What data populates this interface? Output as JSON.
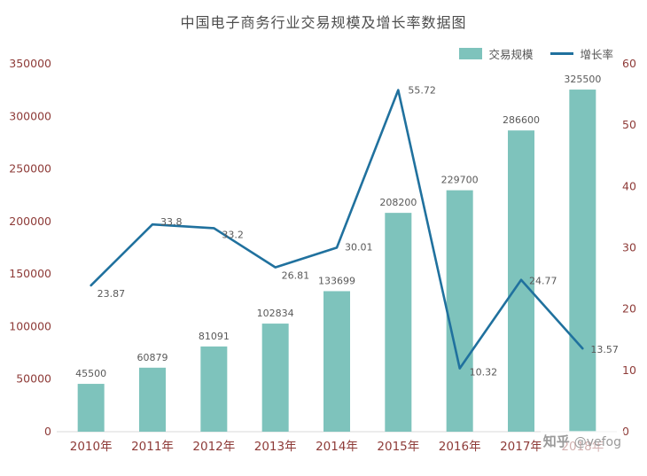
{
  "title": "中国电子商务行业交易规模及增长率数据图",
  "watermark": {
    "brand": "知乎",
    "handle": "@vefog"
  },
  "colors": {
    "bar": "#7ec3bc",
    "line": "#20719e",
    "axis_label": "#8e3b38",
    "data_label": "#595959",
    "title": "#4d4d4d",
    "watermark": "#9a9a9a",
    "axis_line": "#d9d9d9"
  },
  "chart_data": {
    "type": "bar+line",
    "title": "中国电子商务行业交易规模及增长率数据图",
    "categories": [
      "2010年",
      "2011年",
      "2012年",
      "2013年",
      "2014年",
      "2015年",
      "2016年",
      "2017年",
      "2018年"
    ],
    "series": [
      {
        "name": "交易规模",
        "type": "bar",
        "axis": "left",
        "values": [
          45500,
          60879,
          81091,
          102834,
          133699,
          208200,
          229700,
          286600,
          325500
        ]
      },
      {
        "name": "增长率",
        "type": "line",
        "axis": "right",
        "values": [
          23.87,
          33.8,
          33.2,
          26.81,
          30.01,
          55.72,
          10.32,
          24.77,
          13.57
        ]
      }
    ],
    "left_axis": {
      "min": 0,
      "max": 350000,
      "step": 50000
    },
    "right_axis": {
      "min": 0,
      "max": 60,
      "step": 10
    },
    "legend_position": "top-right",
    "grid": false
  }
}
